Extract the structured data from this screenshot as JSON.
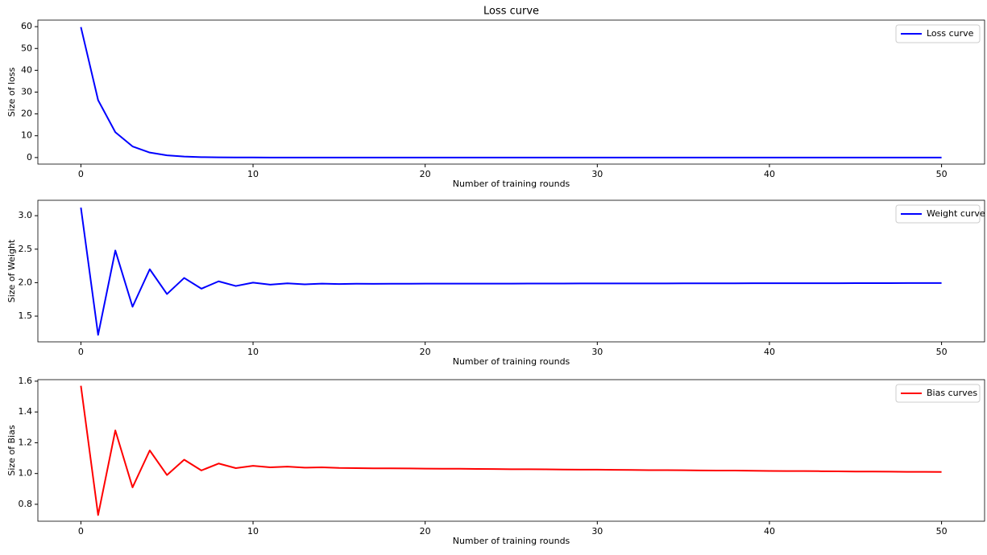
{
  "chart_data": [
    {
      "type": "line",
      "title": "Loss curve",
      "xlabel": "Number of training rounds",
      "ylabel": "Size of loss",
      "x": [
        0,
        1,
        2,
        3,
        4,
        5,
        6,
        7,
        8,
        9,
        10,
        11,
        12,
        13,
        14,
        15,
        16,
        17,
        18,
        19,
        20,
        21,
        22,
        23,
        24,
        25,
        26,
        27,
        28,
        29,
        30,
        31,
        32,
        33,
        34,
        35,
        36,
        37,
        38,
        39,
        40,
        41,
        42,
        43,
        44,
        45,
        46,
        47,
        48,
        49,
        50
      ],
      "series": [
        {
          "name": "Loss curve",
          "color": "#0000ff",
          "values": [
            59.8,
            26.3,
            11.6,
            5.1,
            2.3,
            1.0,
            0.45,
            0.2,
            0.09,
            0.04,
            0.02,
            0.01,
            0.005,
            0.002,
            0.002,
            0.002,
            0.002,
            0.002,
            0.002,
            0.002,
            0.002,
            0.002,
            0.002,
            0.002,
            0.002,
            0.002,
            0.002,
            0.002,
            0.002,
            0.002,
            0.002,
            0.002,
            0.002,
            0.002,
            0.002,
            0.002,
            0.002,
            0.002,
            0.002,
            0.002,
            0.002,
            0.002,
            0.002,
            0.002,
            0.002,
            0.002,
            0.002,
            0.002,
            0.002,
            0.002,
            0.002
          ]
        }
      ],
      "xlim": [
        -2.5,
        52.5
      ],
      "xticks": [
        0,
        10,
        20,
        30,
        40,
        50
      ],
      "ylim": [
        -3,
        63
      ],
      "yticks": [
        0,
        10,
        20,
        30,
        40,
        50,
        60
      ],
      "legend": "upper right"
    },
    {
      "type": "line",
      "xlabel": "Number of training rounds",
      "ylabel": "Size of Weight",
      "x": [
        0,
        1,
        2,
        3,
        4,
        5,
        6,
        7,
        8,
        9,
        10,
        11,
        12,
        13,
        14,
        15,
        16,
        17,
        18,
        19,
        20,
        21,
        22,
        23,
        24,
        25,
        26,
        27,
        28,
        29,
        30,
        31,
        32,
        33,
        34,
        35,
        36,
        37,
        38,
        39,
        40,
        41,
        42,
        43,
        44,
        45,
        46,
        47,
        48,
        49,
        50
      ],
      "series": [
        {
          "name": "Weight curve",
          "color": "#0000ff",
          "values": [
            3.12,
            1.22,
            2.48,
            1.64,
            2.2,
            1.83,
            2.07,
            1.91,
            2.02,
            1.95,
            2.0,
            1.97,
            1.99,
            1.975,
            1.985,
            1.98,
            1.984,
            1.983,
            1.984,
            1.984,
            1.985,
            1.985,
            1.985,
            1.986,
            1.986,
            1.986,
            1.987,
            1.987,
            1.987,
            1.988,
            1.988,
            1.988,
            1.989,
            1.989,
            1.989,
            1.99,
            1.99,
            1.99,
            1.99,
            1.991,
            1.991,
            1.991,
            1.992,
            1.992,
            1.992,
            1.993,
            1.993,
            1.993,
            1.994,
            1.994,
            1.994
          ]
        }
      ],
      "xlim": [
        -2.5,
        52.5
      ],
      "xticks": [
        0,
        10,
        20,
        30,
        40,
        50
      ],
      "ylim": [
        1.116,
        3.23
      ],
      "yticks": [
        1.5,
        {
          "value": 2,
          "label": "2.0"
        },
        2.5,
        {
          "value": 3,
          "label": "3.0"
        }
      ],
      "legend": "upper right"
    },
    {
      "type": "line",
      "xlabel": "Number of training rounds",
      "ylabel": "Size of Bias",
      "x": [
        0,
        1,
        2,
        3,
        4,
        5,
        6,
        7,
        8,
        9,
        10,
        11,
        12,
        13,
        14,
        15,
        16,
        17,
        18,
        19,
        20,
        21,
        22,
        23,
        24,
        25,
        26,
        27,
        28,
        29,
        30,
        31,
        32,
        33,
        34,
        35,
        36,
        37,
        38,
        39,
        40,
        41,
        42,
        43,
        44,
        45,
        46,
        47,
        48,
        49,
        50
      ],
      "series": [
        {
          "name": "Bias curves",
          "color": "#ff0000",
          "values": [
            1.57,
            0.73,
            1.28,
            0.91,
            1.15,
            0.99,
            1.09,
            1.02,
            1.065,
            1.035,
            1.05,
            1.04,
            1.045,
            1.038,
            1.04,
            1.036,
            1.035,
            1.034,
            1.034,
            1.033,
            1.032,
            1.031,
            1.031,
            1.03,
            1.029,
            1.028,
            1.028,
            1.027,
            1.026,
            1.025,
            1.025,
            1.024,
            1.023,
            1.022,
            1.022,
            1.021,
            1.02,
            1.019,
            1.019,
            1.018,
            1.017,
            1.016,
            1.016,
            1.015,
            1.014,
            1.013,
            1.013,
            1.012,
            1.011,
            1.011,
            1.01
          ]
        }
      ],
      "xlim": [
        -2.5,
        52.5
      ],
      "xticks": [
        0,
        10,
        20,
        30,
        40,
        50
      ],
      "ylim": [
        0.69,
        1.61
      ],
      "yticks": [
        0.8,
        {
          "value": 1,
          "label": "1.0"
        },
        1.2,
        1.4,
        1.6
      ],
      "legend": "upper right"
    }
  ]
}
